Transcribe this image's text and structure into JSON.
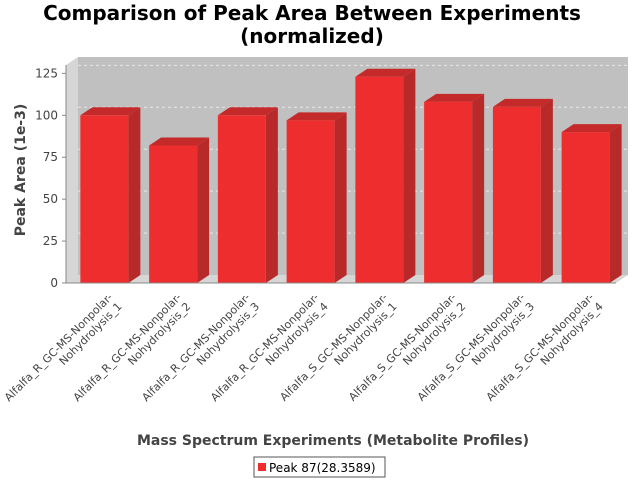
{
  "chart_data": {
    "type": "bar",
    "title_line1": "Comparison of Peak Area Between Experiments",
    "title_line2": "(normalized)",
    "xlabel": "Mass Spectrum Experiments (Metabolite Profiles)",
    "ylabel": "Peak Area (1e-3)",
    "ylim": [
      0,
      130
    ],
    "yticks": [
      "0",
      "25",
      "50",
      "75",
      "100",
      "125"
    ],
    "ytick_values": [
      0,
      25,
      50,
      75,
      100,
      125
    ],
    "grid": true,
    "legend_position": "bottom",
    "categories": [
      [
        "Alfalfa_R_GC-MS-Nonpolar-",
        "Nohydrolysis_1"
      ],
      [
        "Alfalfa_R_GC-MS-Nonpolar-",
        "Nohydrolysis_2"
      ],
      [
        "Alfalfa_R_GC-MS-Nonpolar-",
        "Nohydrolysis_3"
      ],
      [
        "Alfalfa_R_GC-MS-Nonpolar-",
        "Nohydrolysis_4"
      ],
      [
        "Alfalfa_S_GC-MS-Nonpolar-",
        "Nohydrolysis_1"
      ],
      [
        "Alfalfa_S_GC-MS-Nonpolar-",
        "Nohydrolysis_2"
      ],
      [
        "Alfalfa_S_GC-MS-Nonpolar-",
        "Nohydrolysis_3"
      ],
      [
        "Alfalfa_S_GC-MS-Nonpolar-",
        "Nohydrolysis_4"
      ]
    ],
    "series": [
      {
        "name": "Peak 87(28.3589)",
        "color": "#ee2e2e",
        "values": [
          100,
          82,
          100,
          97,
          123,
          108,
          105,
          90
        ]
      }
    ]
  }
}
